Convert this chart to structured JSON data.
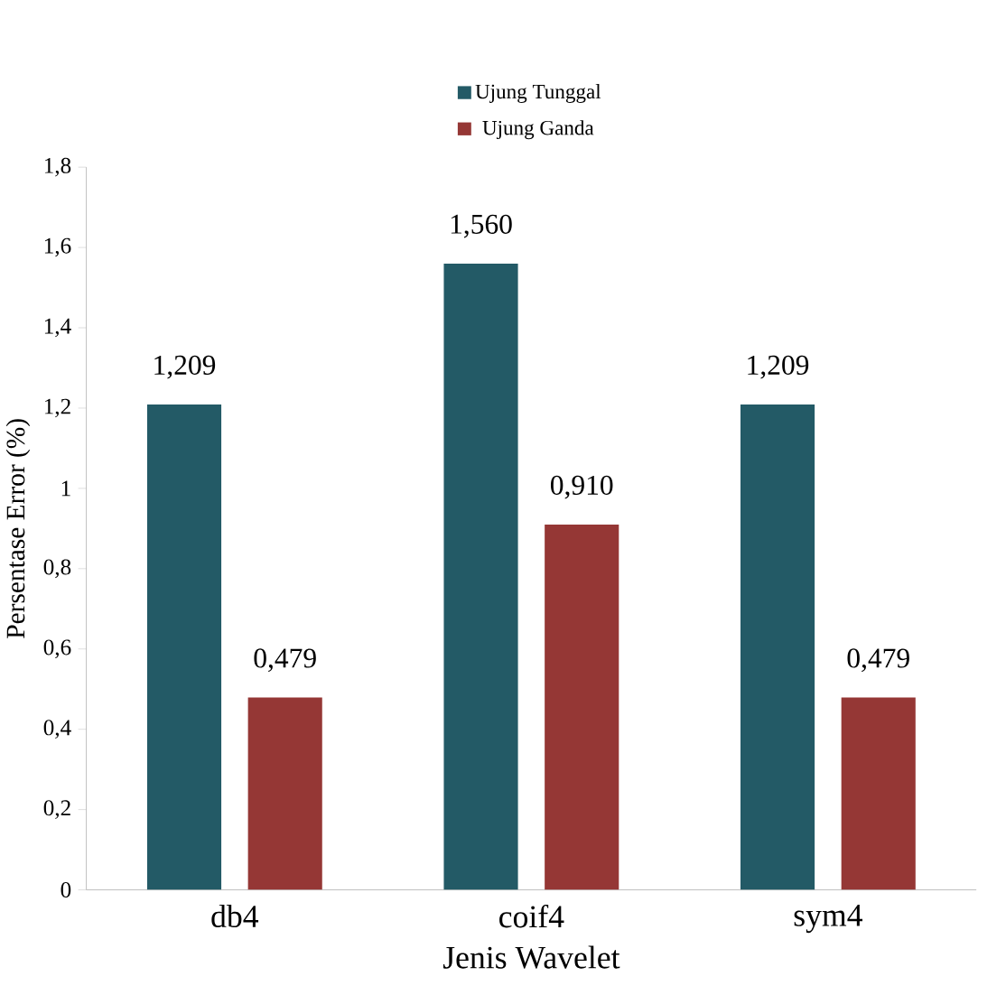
{
  "chart_data": {
    "type": "bar",
    "xlabel": "Jenis Wavelet",
    "ylabel": "Persentase Error (%)",
    "categories": [
      "db4",
      "coif4",
      "sym4"
    ],
    "series": [
      {
        "name": "Ujung Tunggal",
        "color": "#235a66",
        "values": [
          1.209,
          1.56,
          1.209
        ],
        "value_labels": [
          "1,209",
          "1,560",
          "1,209"
        ]
      },
      {
        "name": "Ujung Ganda",
        "color": "#953735",
        "values": [
          0.479,
          0.91,
          0.479
        ],
        "value_labels": [
          "0,479",
          "0,910",
          "0,479"
        ]
      }
    ],
    "ylim": [
      0,
      1.8
    ],
    "yticks": [
      0,
      {
        "value": 0.2,
        "label": "0,2"
      },
      {
        "value": 0.4,
        "label": "0,4"
      },
      {
        "value": 0.6,
        "label": "0,6"
      },
      {
        "value": 0.8,
        "label": "0,8"
      },
      1,
      {
        "value": 1.2,
        "label": "1,2"
      },
      {
        "value": 1.4,
        "label": "1,4"
      },
      {
        "value": 1.6,
        "label": "1,6"
      },
      {
        "value": 1.8,
        "label": "1,8"
      }
    ],
    "grid": false,
    "legend": "top"
  }
}
